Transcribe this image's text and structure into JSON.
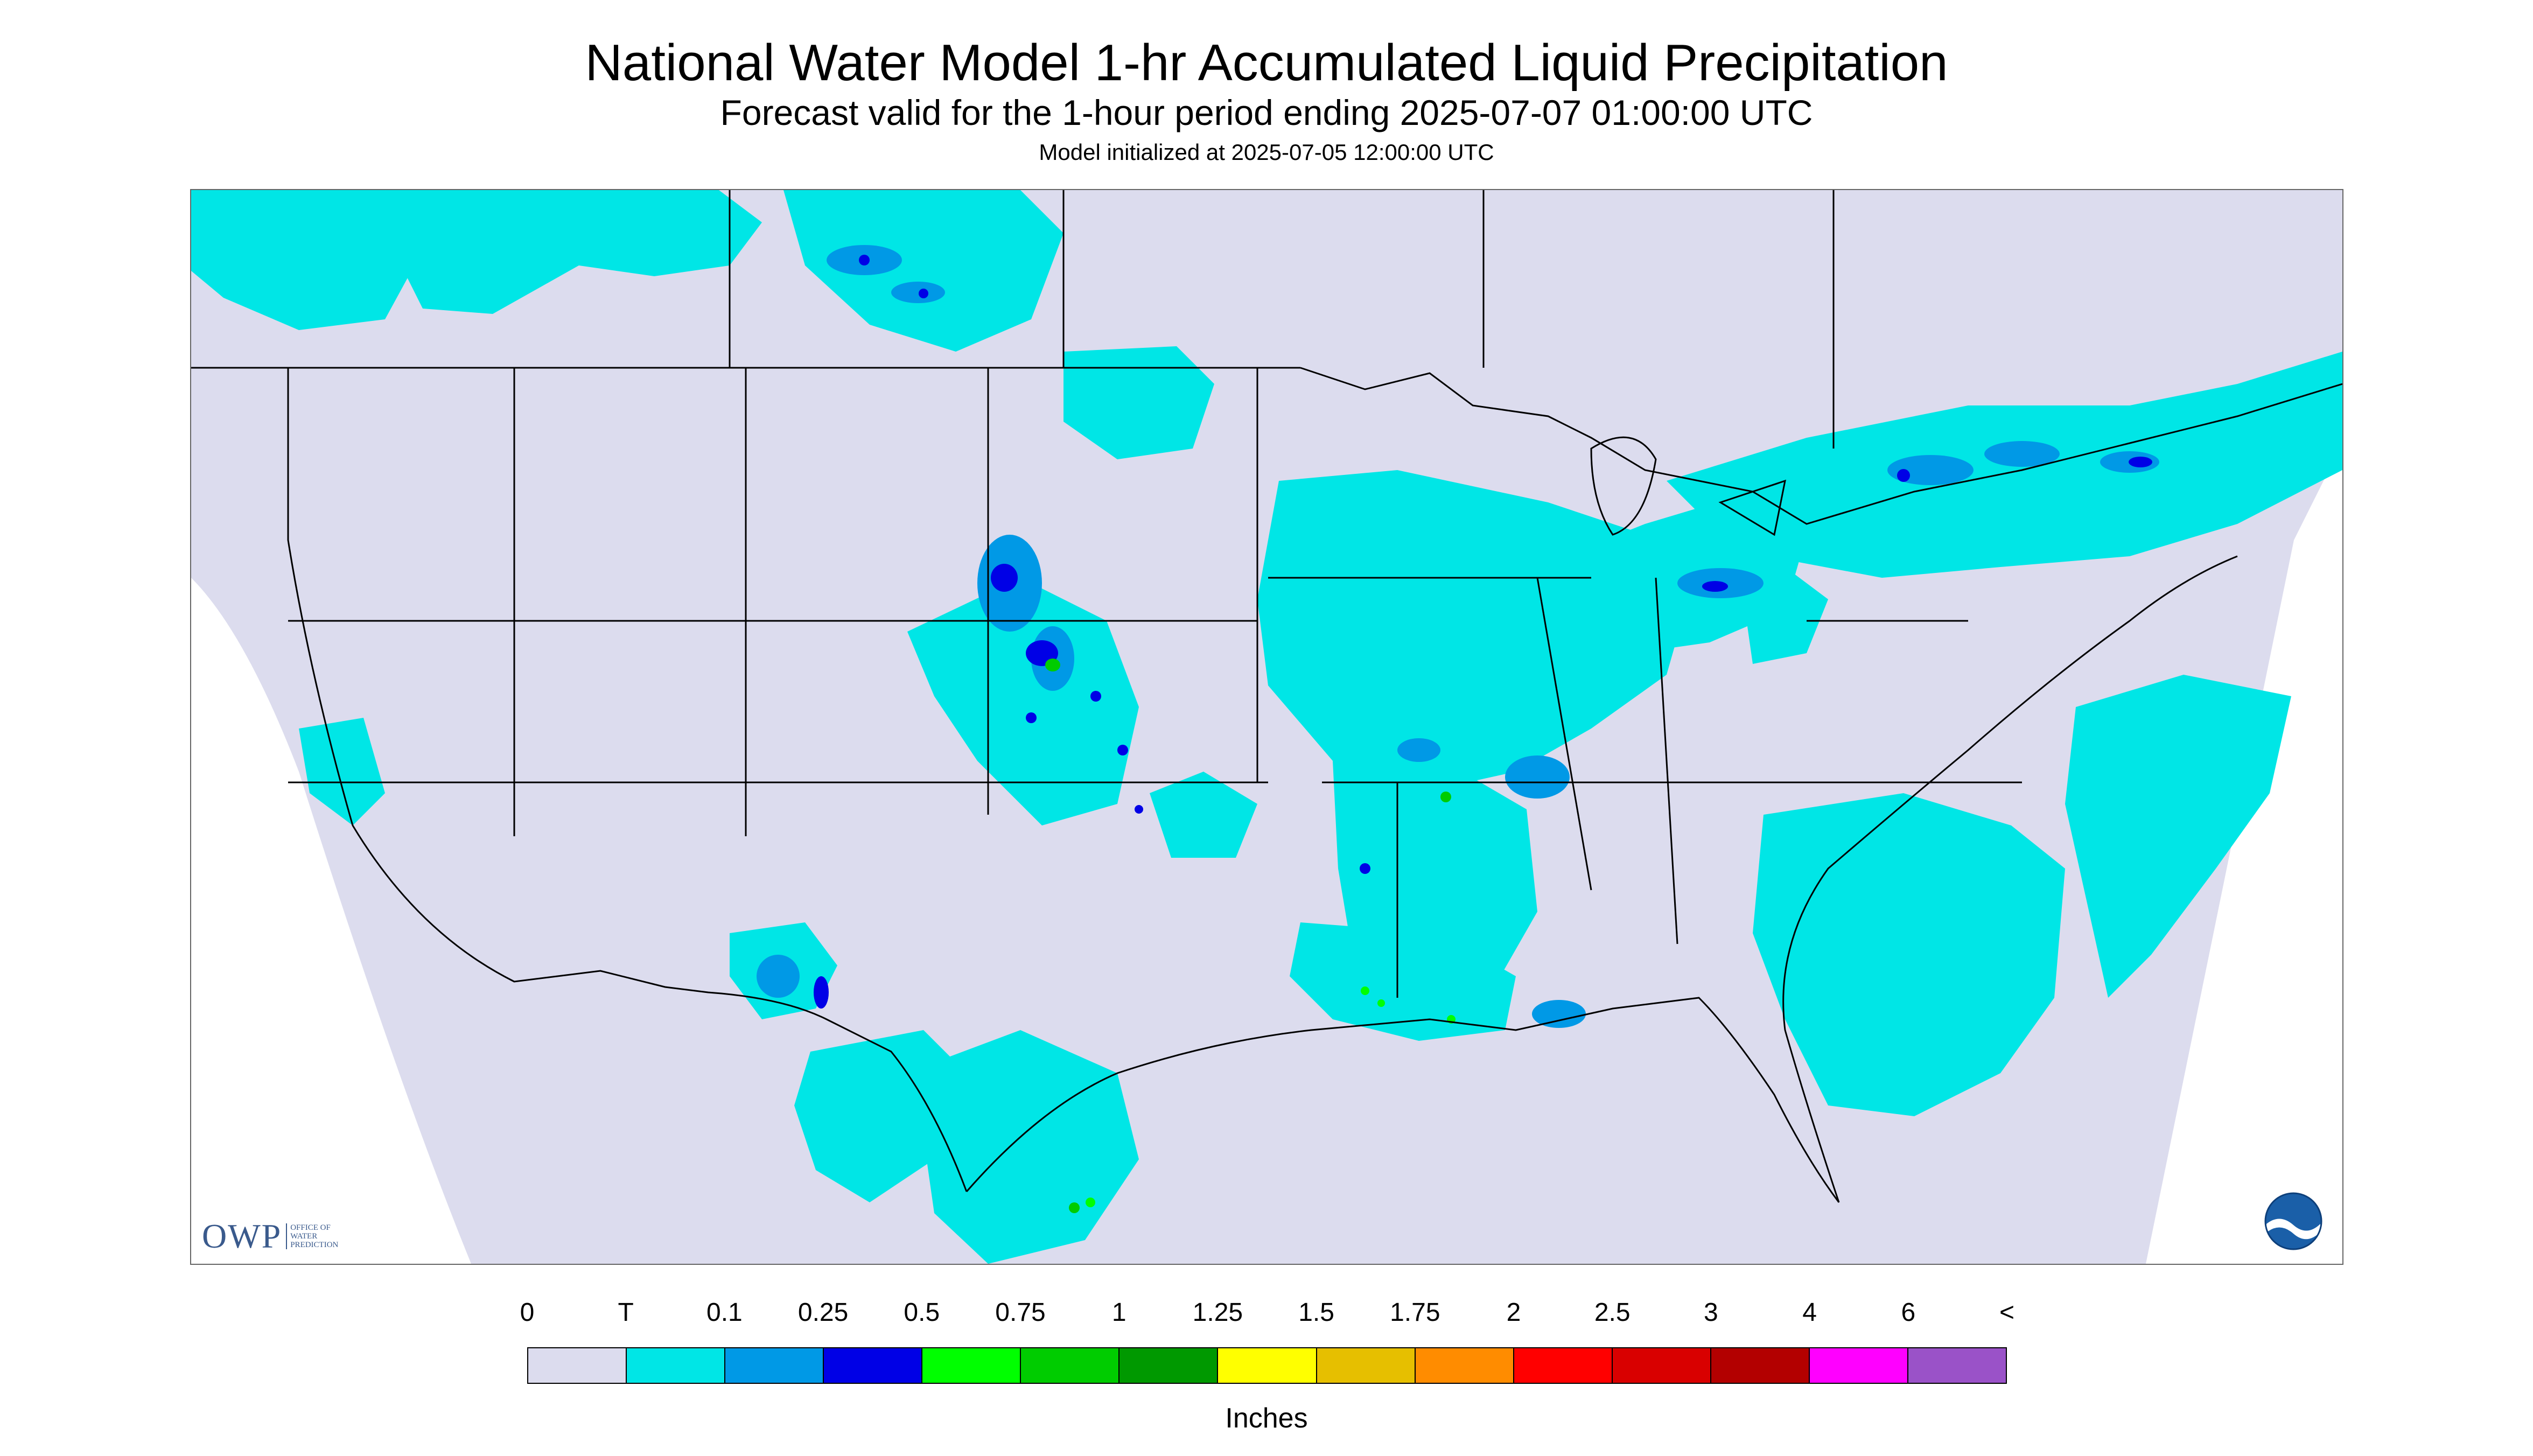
{
  "header": {
    "title": "National Water Model 1-hr Accumulated Liquid Precipitation",
    "subtitle": "Forecast valid for the 1-hour period ending 2025-07-07 01:00:00 UTC",
    "init": "Model initialized at 2025-07-05 12:00:00 UTC"
  },
  "logos": {
    "owp_mark": "OWP",
    "owp_sub": [
      "Office of",
      "Water",
      "Prediction"
    ],
    "noaa": "NOAA"
  },
  "legend": {
    "labels": [
      "0",
      "T",
      "0.1",
      "0.25",
      "0.5",
      "0.75",
      "1",
      "1.25",
      "1.5",
      "1.75",
      "2",
      "2.5",
      "3",
      "4",
      "6",
      "<"
    ],
    "colors": [
      "#dcdcee",
      "#00e6e6",
      "#0099e6",
      "#0000e6",
      "#00ff00",
      "#00cc00",
      "#009900",
      "#ffff00",
      "#e6bf00",
      "#ff8c00",
      "#ff0000",
      "#d90000",
      "#b30000",
      "#ff00ff",
      "#9a52c8"
    ],
    "units": "Inches"
  },
  "map": {
    "domain_fill": "#dcdcee",
    "outside_fill": "#ffffff",
    "boundary_color": "#000000"
  }
}
